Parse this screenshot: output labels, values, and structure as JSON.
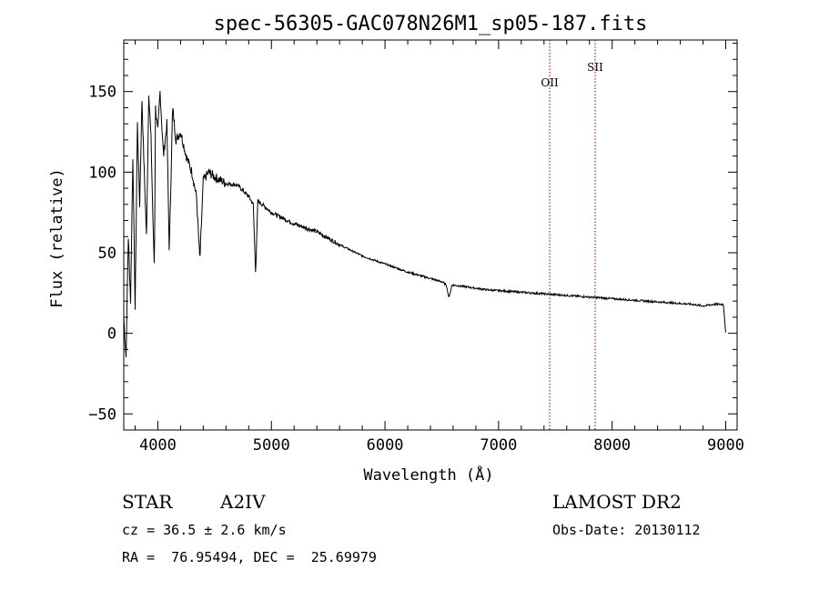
{
  "chart_data": {
    "type": "line",
    "title": "spec-56305-GAC078N26M1_sp05-187.fits",
    "xlabel": "Wavelength (Å)",
    "ylabel": "Flux (relative)",
    "xlim": [
      3700,
      9100
    ],
    "ylim": [
      -60,
      182
    ],
    "x_ticks": [
      4000,
      5000,
      6000,
      7000,
      8000,
      9000
    ],
    "y_ticks": [
      -50,
      0,
      50,
      100,
      150
    ],
    "grid": false,
    "series": [
      {
        "x": [
          3700,
          3720,
          3740,
          3760,
          3780,
          3800,
          3820,
          3840,
          3860,
          3880,
          3900,
          3920,
          3940,
          3960,
          3970,
          3980,
          4000,
          4020,
          4050,
          4080,
          4101,
          4130,
          4160,
          4200,
          4250,
          4300,
          4340,
          4370,
          4400,
          4450,
          4500,
          4600,
          4700,
          4800,
          4840,
          4861,
          4880,
          4920,
          5000,
          5200,
          5400,
          5600,
          5800,
          6000,
          6200,
          6400,
          6500,
          6540,
          6563,
          6590,
          6700,
          6900,
          7100,
          7300,
          7500,
          7700,
          7900,
          8100,
          8300,
          8500,
          8700,
          8800,
          8900,
          8980,
          9000
        ],
        "y": [
          10,
          -15,
          60,
          20,
          110,
          15,
          130,
          80,
          145,
          100,
          60,
          150,
          120,
          60,
          40,
          140,
          125,
          150,
          110,
          130,
          50,
          140,
          120,
          125,
          110,
          100,
          85,
          45,
          95,
          100,
          97,
          93,
          92,
          85,
          80,
          37,
          82,
          80,
          75,
          68,
          63,
          55,
          48,
          43,
          38,
          34,
          32,
          30,
          22,
          30,
          29,
          27,
          26,
          25,
          24,
          23,
          22,
          21,
          20,
          19,
          18,
          17,
          18,
          18,
          0
        ]
      }
    ],
    "vlines": [
      {
        "x": 7450,
        "label": "OII",
        "color": "#a00000"
      },
      {
        "x": 7850,
        "label": "SII",
        "color": "#a00000"
      }
    ]
  },
  "info": {
    "object_type": "STAR",
    "subclass": "A2IV",
    "survey": "LAMOST DR2",
    "cz": "cz = 36.5 ± 2.6 km/s",
    "obs_date": "Obs-Date: 20130112",
    "coords": "RA =  76.95494, DEC =  25.69979"
  }
}
